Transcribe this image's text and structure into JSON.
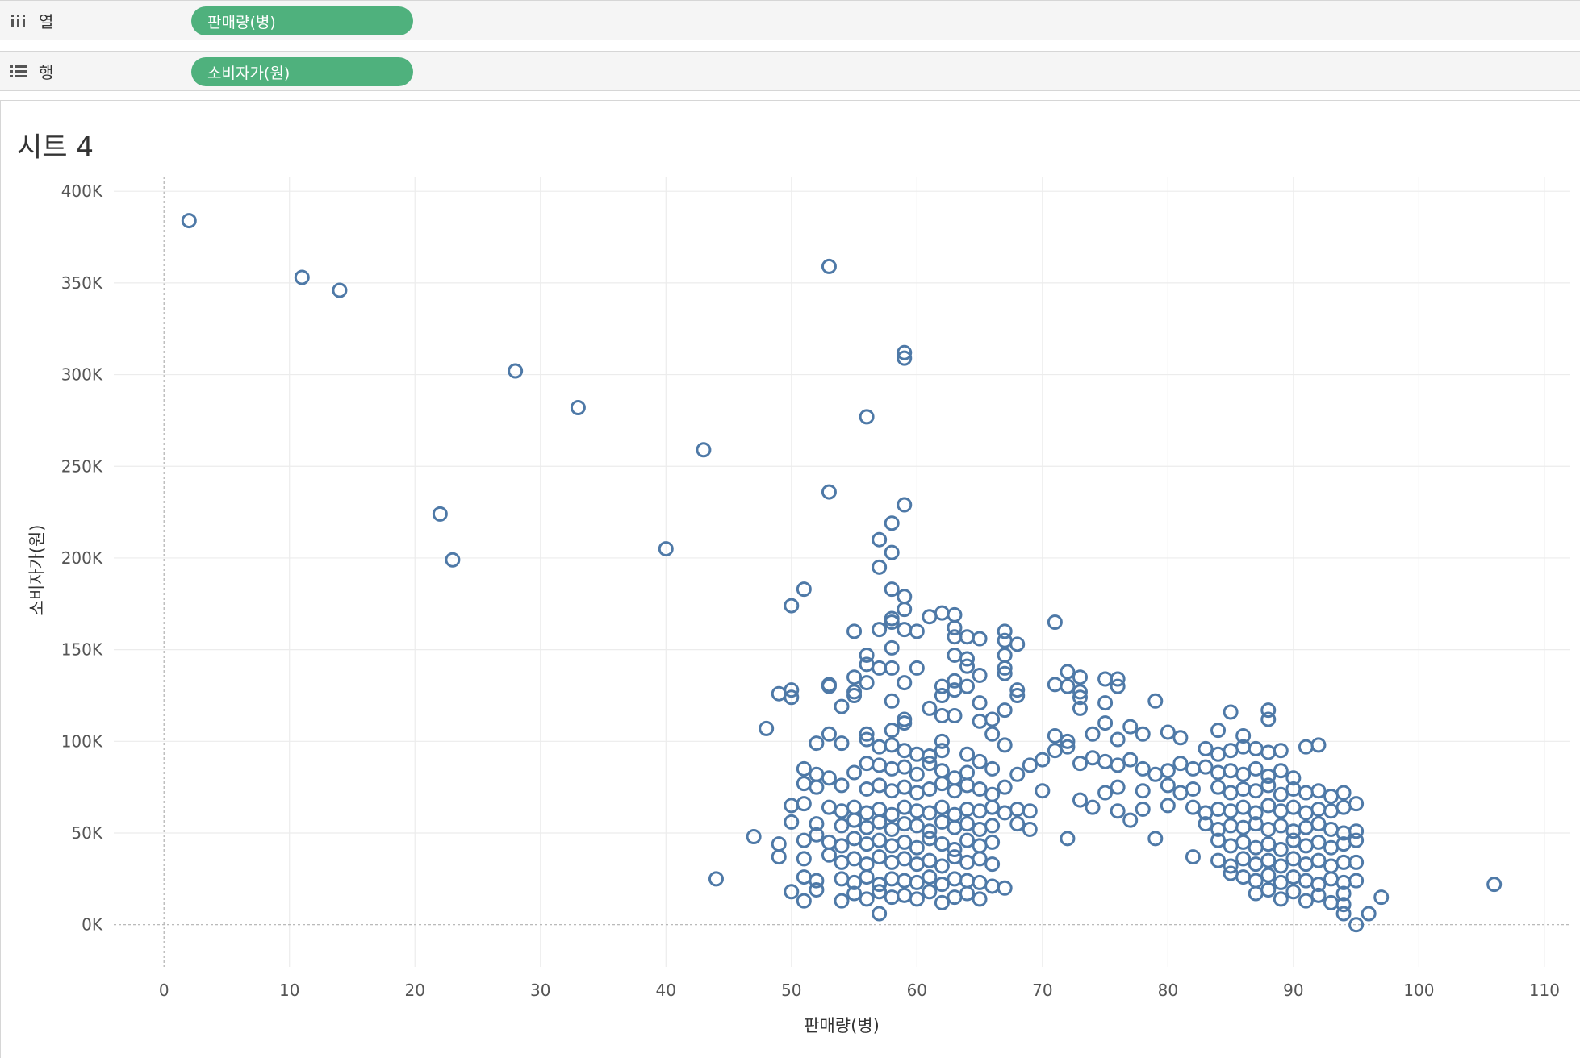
{
  "shelves": {
    "columns": {
      "label": "열",
      "icon": "columns-icon",
      "pill": "판매량(병)"
    },
    "rows": {
      "label": "행",
      "icon": "rows-icon",
      "pill": "소비자가(원)"
    }
  },
  "sheet": {
    "title": "시트 4"
  },
  "colors": {
    "pill": "#4fb17d",
    "marker": "#4e79a7",
    "grid": "#ececec"
  },
  "chart_data": {
    "type": "scatter",
    "xlabel": "판매량(병)",
    "ylabel": "소비자가(원)",
    "xlim": [
      -4,
      112
    ],
    "ylim": [
      -23000,
      408000
    ],
    "x_ticks": [
      0,
      10,
      20,
      30,
      40,
      50,
      60,
      70,
      80,
      90,
      100,
      110
    ],
    "y_ticks": [
      0,
      50000,
      100000,
      150000,
      200000,
      250000,
      300000,
      350000,
      400000
    ],
    "y_tick_labels": [
      "0K",
      "50K",
      "100K",
      "150K",
      "200K",
      "250K",
      "300K",
      "350K",
      "400K"
    ],
    "grid": true,
    "marker": "hollow-circle",
    "points": [
      [
        2,
        384000
      ],
      [
        11,
        353000
      ],
      [
        14,
        346000
      ],
      [
        28,
        302000
      ],
      [
        33,
        282000
      ],
      [
        43,
        259000
      ],
      [
        22,
        224000
      ],
      [
        23,
        199000
      ],
      [
        40,
        205000
      ],
      [
        44,
        25000
      ],
      [
        53,
        359000
      ],
      [
        59,
        312000
      ],
      [
        59,
        309000
      ],
      [
        56,
        277000
      ],
      [
        53,
        236000
      ],
      [
        59,
        229000
      ],
      [
        58,
        219000
      ],
      [
        57,
        210000
      ],
      [
        58,
        203000
      ],
      [
        57,
        195000
      ],
      [
        51,
        183000
      ],
      [
        58,
        183000
      ],
      [
        59,
        179000
      ],
      [
        50,
        174000
      ],
      [
        59,
        172000
      ],
      [
        58,
        167000
      ],
      [
        58,
        165000
      ],
      [
        62,
        170000
      ],
      [
        63,
        169000
      ],
      [
        61,
        168000
      ],
      [
        57,
        161000
      ],
      [
        60,
        160000
      ],
      [
        55,
        160000
      ],
      [
        59,
        161000
      ],
      [
        63,
        162000
      ],
      [
        63,
        157000
      ],
      [
        64,
        157000
      ],
      [
        65,
        156000
      ],
      [
        67,
        160000
      ],
      [
        67,
        155000
      ],
      [
        68,
        153000
      ],
      [
        67,
        147000
      ],
      [
        71,
        165000
      ],
      [
        58,
        151000
      ],
      [
        63,
        147000
      ],
      [
        64,
        145000
      ],
      [
        56,
        147000
      ],
      [
        56,
        142000
      ],
      [
        57,
        140000
      ],
      [
        58,
        140000
      ],
      [
        60,
        140000
      ],
      [
        64,
        141000
      ],
      [
        67,
        140000
      ],
      [
        67,
        137000
      ],
      [
        72,
        138000
      ],
      [
        73,
        135000
      ],
      [
        75,
        134000
      ],
      [
        76,
        134000
      ],
      [
        76,
        130000
      ],
      [
        53,
        131000
      ],
      [
        53,
        130000
      ],
      [
        55,
        135000
      ],
      [
        56,
        132000
      ],
      [
        59,
        132000
      ],
      [
        62,
        130000
      ],
      [
        64,
        130000
      ],
      [
        65,
        136000
      ],
      [
        49,
        126000
      ],
      [
        50,
        128000
      ],
      [
        50,
        124000
      ],
      [
        55,
        127000
      ],
      [
        55,
        125000
      ],
      [
        62,
        125000
      ],
      [
        63,
        128000
      ],
      [
        63,
        133000
      ],
      [
        68,
        128000
      ],
      [
        68,
        125000
      ],
      [
        71,
        131000
      ],
      [
        72,
        130000
      ],
      [
        73,
        127000
      ],
      [
        73,
        124000
      ],
      [
        75,
        121000
      ],
      [
        79,
        122000
      ],
      [
        54,
        119000
      ],
      [
        58,
        122000
      ],
      [
        61,
        118000
      ],
      [
        62,
        114000
      ],
      [
        63,
        114000
      ],
      [
        65,
        121000
      ],
      [
        65,
        111000
      ],
      [
        66,
        112000
      ],
      [
        67,
        117000
      ],
      [
        73,
        118000
      ],
      [
        75,
        110000
      ],
      [
        85,
        116000
      ],
      [
        88,
        117000
      ],
      [
        88,
        112000
      ],
      [
        48,
        107000
      ],
      [
        53,
        104000
      ],
      [
        56,
        104000
      ],
      [
        56,
        101000
      ],
      [
        59,
        110000
      ],
      [
        59,
        112000
      ],
      [
        58,
        106000
      ],
      [
        52,
        99000
      ],
      [
        54,
        99000
      ],
      [
        57,
        97000
      ],
      [
        58,
        98000
      ],
      [
        59,
        95000
      ],
      [
        60,
        93000
      ],
      [
        61,
        92000
      ],
      [
        62,
        100000
      ],
      [
        62,
        95000
      ],
      [
        64,
        93000
      ],
      [
        66,
        104000
      ],
      [
        67,
        98000
      ],
      [
        71,
        103000
      ],
      [
        72,
        100000
      ],
      [
        72,
        97000
      ],
      [
        74,
        104000
      ],
      [
        76,
        101000
      ],
      [
        77,
        108000
      ],
      [
        78,
        104000
      ],
      [
        80,
        105000
      ],
      [
        81,
        102000
      ],
      [
        83,
        96000
      ],
      [
        84,
        106000
      ],
      [
        86,
        103000
      ],
      [
        91,
        97000
      ],
      [
        92,
        98000
      ],
      [
        84,
        93000
      ],
      [
        85,
        95000
      ],
      [
        86,
        97000
      ],
      [
        87,
        96000
      ],
      [
        88,
        94000
      ],
      [
        89,
        95000
      ],
      [
        51,
        85000
      ],
      [
        52,
        82000
      ],
      [
        53,
        80000
      ],
      [
        55,
        83000
      ],
      [
        56,
        88000
      ],
      [
        57,
        87000
      ],
      [
        58,
        85000
      ],
      [
        59,
        86000
      ],
      [
        60,
        82000
      ],
      [
        61,
        88000
      ],
      [
        62,
        84000
      ],
      [
        63,
        80000
      ],
      [
        64,
        83000
      ],
      [
        65,
        89000
      ],
      [
        66,
        85000
      ],
      [
        68,
        82000
      ],
      [
        69,
        87000
      ],
      [
        70,
        90000
      ],
      [
        71,
        95000
      ],
      [
        73,
        88000
      ],
      [
        74,
        91000
      ],
      [
        75,
        89000
      ],
      [
        76,
        87000
      ],
      [
        77,
        90000
      ],
      [
        78,
        85000
      ],
      [
        79,
        82000
      ],
      [
        80,
        84000
      ],
      [
        81,
        88000
      ],
      [
        82,
        85000
      ],
      [
        83,
        86000
      ],
      [
        84,
        83000
      ],
      [
        85,
        84000
      ],
      [
        86,
        82000
      ],
      [
        87,
        85000
      ],
      [
        88,
        81000
      ],
      [
        89,
        84000
      ],
      [
        90,
        80000
      ],
      [
        51,
        77000
      ],
      [
        52,
        75000
      ],
      [
        54,
        76000
      ],
      [
        56,
        74000
      ],
      [
        57,
        76000
      ],
      [
        58,
        73000
      ],
      [
        59,
        75000
      ],
      [
        60,
        72000
      ],
      [
        61,
        74000
      ],
      [
        62,
        77000
      ],
      [
        63,
        73000
      ],
      [
        64,
        76000
      ],
      [
        65,
        74000
      ],
      [
        66,
        71000
      ],
      [
        67,
        75000
      ],
      [
        70,
        73000
      ],
      [
        73,
        68000
      ],
      [
        75,
        72000
      ],
      [
        76,
        75000
      ],
      [
        78,
        73000
      ],
      [
        80,
        76000
      ],
      [
        81,
        72000
      ],
      [
        82,
        74000
      ],
      [
        84,
        75000
      ],
      [
        85,
        72000
      ],
      [
        86,
        74000
      ],
      [
        87,
        73000
      ],
      [
        88,
        76000
      ],
      [
        89,
        71000
      ],
      [
        90,
        74000
      ],
      [
        91,
        72000
      ],
      [
        92,
        73000
      ],
      [
        93,
        70000
      ],
      [
        94,
        72000
      ],
      [
        50,
        65000
      ],
      [
        51,
        66000
      ],
      [
        53,
        64000
      ],
      [
        54,
        62000
      ],
      [
        55,
        64000
      ],
      [
        56,
        61000
      ],
      [
        57,
        63000
      ],
      [
        58,
        60000
      ],
      [
        59,
        64000
      ],
      [
        60,
        62000
      ],
      [
        61,
        61000
      ],
      [
        62,
        64000
      ],
      [
        63,
        60000
      ],
      [
        64,
        63000
      ],
      [
        65,
        62000
      ],
      [
        66,
        64000
      ],
      [
        67,
        61000
      ],
      [
        68,
        63000
      ],
      [
        69,
        62000
      ],
      [
        74,
        64000
      ],
      [
        76,
        62000
      ],
      [
        78,
        63000
      ],
      [
        80,
        65000
      ],
      [
        82,
        64000
      ],
      [
        83,
        61000
      ],
      [
        84,
        63000
      ],
      [
        85,
        62000
      ],
      [
        86,
        64000
      ],
      [
        87,
        61000
      ],
      [
        88,
        65000
      ],
      [
        89,
        62000
      ],
      [
        90,
        64000
      ],
      [
        91,
        61000
      ],
      [
        92,
        63000
      ],
      [
        93,
        62000
      ],
      [
        94,
        64000
      ],
      [
        95,
        66000
      ],
      [
        50,
        56000
      ],
      [
        52,
        55000
      ],
      [
        54,
        54000
      ],
      [
        55,
        57000
      ],
      [
        56,
        53000
      ],
      [
        57,
        56000
      ],
      [
        58,
        52000
      ],
      [
        59,
        55000
      ],
      [
        60,
        54000
      ],
      [
        61,
        51000
      ],
      [
        62,
        56000
      ],
      [
        63,
        53000
      ],
      [
        64,
        55000
      ],
      [
        65,
        52000
      ],
      [
        66,
        54000
      ],
      [
        68,
        55000
      ],
      [
        69,
        52000
      ],
      [
        72,
        47000
      ],
      [
        77,
        57000
      ],
      [
        79,
        47000
      ],
      [
        83,
        55000
      ],
      [
        84,
        52000
      ],
      [
        85,
        54000
      ],
      [
        86,
        53000
      ],
      [
        87,
        55000
      ],
      [
        88,
        52000
      ],
      [
        89,
        54000
      ],
      [
        90,
        51000
      ],
      [
        91,
        53000
      ],
      [
        92,
        55000
      ],
      [
        93,
        52000
      ],
      [
        94,
        50000
      ],
      [
        95,
        51000
      ],
      [
        47,
        48000
      ],
      [
        49,
        44000
      ],
      [
        51,
        46000
      ],
      [
        52,
        49000
      ],
      [
        53,
        45000
      ],
      [
        54,
        43000
      ],
      [
        55,
        47000
      ],
      [
        56,
        44000
      ],
      [
        57,
        46000
      ],
      [
        58,
        43000
      ],
      [
        59,
        45000
      ],
      [
        60,
        42000
      ],
      [
        61,
        47000
      ],
      [
        62,
        44000
      ],
      [
        63,
        41000
      ],
      [
        64,
        46000
      ],
      [
        65,
        43000
      ],
      [
        66,
        45000
      ],
      [
        84,
        46000
      ],
      [
        85,
        43000
      ],
      [
        86,
        45000
      ],
      [
        87,
        42000
      ],
      [
        88,
        44000
      ],
      [
        89,
        41000
      ],
      [
        90,
        46000
      ],
      [
        91,
        43000
      ],
      [
        92,
        45000
      ],
      [
        93,
        42000
      ],
      [
        94,
        44000
      ],
      [
        95,
        46000
      ],
      [
        49,
        37000
      ],
      [
        51,
        36000
      ],
      [
        53,
        38000
      ],
      [
        54,
        34000
      ],
      [
        55,
        36000
      ],
      [
        56,
        33000
      ],
      [
        57,
        37000
      ],
      [
        58,
        34000
      ],
      [
        59,
        36000
      ],
      [
        60,
        33000
      ],
      [
        61,
        35000
      ],
      [
        62,
        32000
      ],
      [
        63,
        37000
      ],
      [
        64,
        34000
      ],
      [
        65,
        36000
      ],
      [
        66,
        33000
      ],
      [
        82,
        37000
      ],
      [
        84,
        35000
      ],
      [
        85,
        32000
      ],
      [
        86,
        36000
      ],
      [
        87,
        33000
      ],
      [
        88,
        35000
      ],
      [
        89,
        32000
      ],
      [
        90,
        36000
      ],
      [
        91,
        33000
      ],
      [
        92,
        35000
      ],
      [
        93,
        32000
      ],
      [
        94,
        34000
      ],
      [
        95,
        34000
      ],
      [
        51,
        26000
      ],
      [
        52,
        24000
      ],
      [
        54,
        25000
      ],
      [
        55,
        23000
      ],
      [
        56,
        26000
      ],
      [
        57,
        22000
      ],
      [
        58,
        25000
      ],
      [
        59,
        24000
      ],
      [
        60,
        23000
      ],
      [
        61,
        26000
      ],
      [
        62,
        22000
      ],
      [
        63,
        25000
      ],
      [
        64,
        24000
      ],
      [
        65,
        23000
      ],
      [
        66,
        21000
      ],
      [
        67,
        20000
      ],
      [
        85,
        28000
      ],
      [
        86,
        26000
      ],
      [
        87,
        24000
      ],
      [
        88,
        27000
      ],
      [
        89,
        23000
      ],
      [
        90,
        26000
      ],
      [
        91,
        24000
      ],
      [
        92,
        22000
      ],
      [
        93,
        25000
      ],
      [
        94,
        23000
      ],
      [
        95,
        24000
      ],
      [
        50,
        18000
      ],
      [
        51,
        13000
      ],
      [
        52,
        19000
      ],
      [
        54,
        13000
      ],
      [
        55,
        17000
      ],
      [
        56,
        14000
      ],
      [
        57,
        18000
      ],
      [
        58,
        15000
      ],
      [
        59,
        16000
      ],
      [
        60,
        14000
      ],
      [
        61,
        18000
      ],
      [
        62,
        12000
      ],
      [
        63,
        15000
      ],
      [
        64,
        17000
      ],
      [
        65,
        14000
      ],
      [
        87,
        17000
      ],
      [
        88,
        19000
      ],
      [
        89,
        14000
      ],
      [
        90,
        18000
      ],
      [
        91,
        13000
      ],
      [
        92,
        16000
      ],
      [
        93,
        12000
      ],
      [
        94,
        17000
      ],
      [
        94,
        11000
      ],
      [
        97,
        15000
      ],
      [
        57,
        6000
      ],
      [
        94,
        6000
      ],
      [
        96,
        6000
      ],
      [
        95,
        0
      ],
      [
        106,
        22000
      ]
    ]
  }
}
